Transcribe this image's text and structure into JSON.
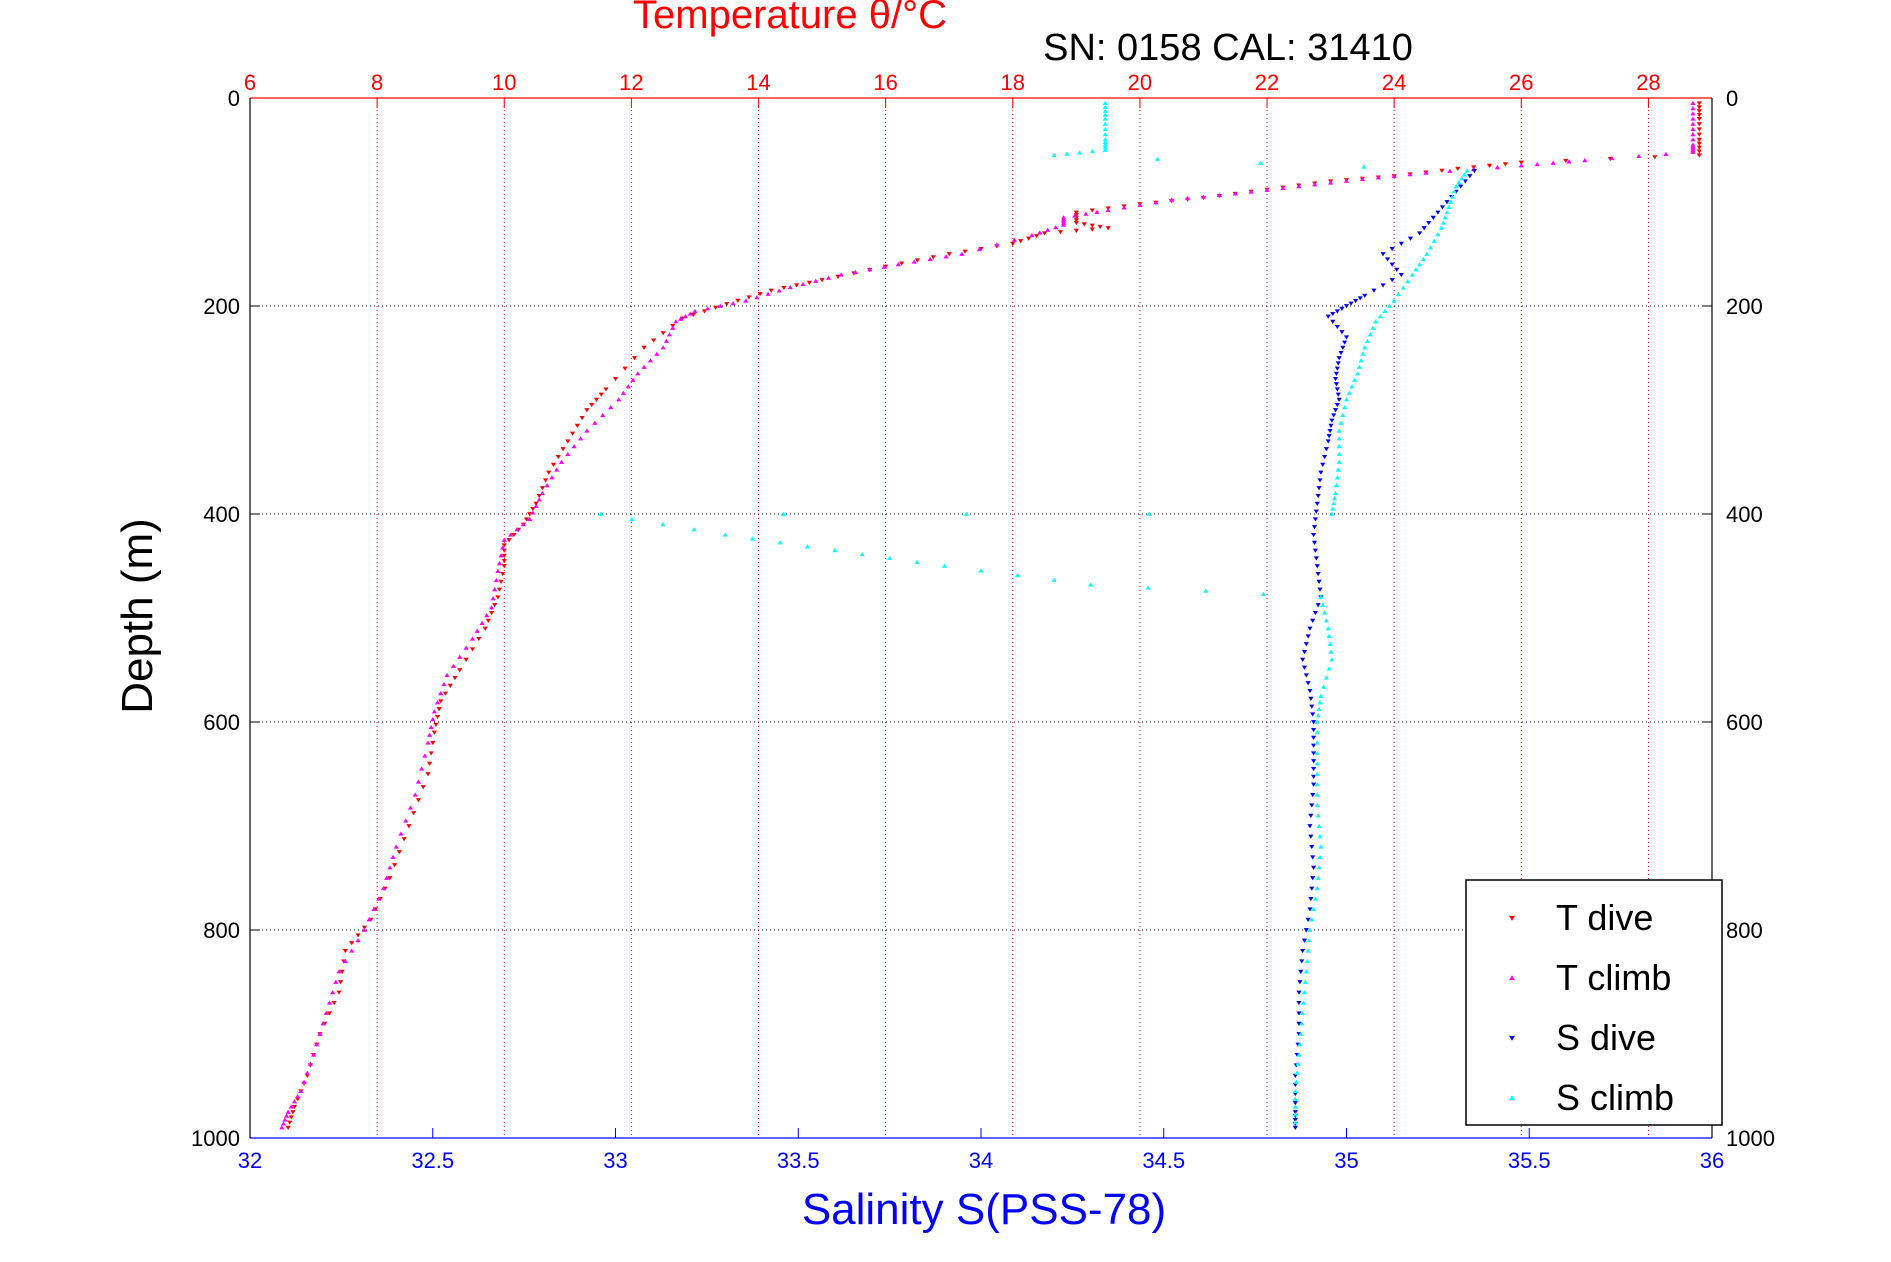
{
  "chart_data": {
    "type": "scatter",
    "title": "Temperature θ/°C",
    "subtitle": "SN: 0158  CAL: 31410",
    "xlabel": "Salinity S(PSS-78)",
    "ylabel": "Depth (m)",
    "x_bottom": {
      "label": "Salinity S(PSS-78)",
      "range": [
        32,
        36
      ],
      "ticks": [
        "32",
        "32.5",
        "33",
        "33.5",
        "34",
        "34.5",
        "35",
        "35.5",
        "36"
      ],
      "color": "#0000ff"
    },
    "x_top": {
      "label": "Temperature θ/°C",
      "range": [
        6,
        29
      ],
      "ticks": [
        "6",
        "8",
        "10",
        "12",
        "14",
        "16",
        "18",
        "20",
        "22",
        "24",
        "26",
        "28"
      ],
      "color": "#ff0000"
    },
    "y": {
      "label": "Depth (m)",
      "range": [
        0,
        1000
      ],
      "reversed": true,
      "ticks": [
        "0",
        "200",
        "400",
        "600",
        "800",
        "1000"
      ]
    },
    "grid": true,
    "legend_position": "bottom-right",
    "series": [
      {
        "name": "T dive",
        "axis": "top",
        "color": "#ff0000",
        "marker": "triangle-down",
        "points": [
          [
            28.8,
            5
          ],
          [
            28.8,
            20
          ],
          [
            28.8,
            40
          ],
          [
            28.8,
            55
          ],
          [
            26.0,
            62
          ],
          [
            25.0,
            68
          ],
          [
            24.0,
            75
          ],
          [
            23.0,
            80
          ],
          [
            22.0,
            88
          ],
          [
            21.0,
            96
          ],
          [
            20.0,
            102
          ],
          [
            19.0,
            110
          ],
          [
            19.0,
            120
          ],
          [
            19.5,
            125
          ],
          [
            18.5,
            130
          ],
          [
            18.0,
            140
          ],
          [
            17.0,
            150
          ],
          [
            16.0,
            162
          ],
          [
            15.0,
            175
          ],
          [
            14.2,
            185
          ],
          [
            13.5,
            198
          ],
          [
            12.8,
            212
          ],
          [
            12.2,
            240
          ],
          [
            11.6,
            280
          ],
          [
            11.3,
            300
          ],
          [
            11.0,
            330
          ],
          [
            10.7,
            360
          ],
          [
            10.5,
            390
          ],
          [
            10.3,
            410
          ],
          [
            10.0,
            430
          ],
          [
            10.0,
            450
          ],
          [
            9.9,
            480
          ],
          [
            9.7,
            510
          ],
          [
            9.3,
            550
          ],
          [
            9.0,
            580
          ],
          [
            8.9,
            610
          ],
          [
            8.8,
            650
          ],
          [
            8.5,
            700
          ],
          [
            8.2,
            750
          ],
          [
            7.9,
            790
          ],
          [
            7.5,
            820
          ],
          [
            7.4,
            860
          ],
          [
            7.1,
            900
          ],
          [
            6.9,
            940
          ],
          [
            6.7,
            970
          ],
          [
            6.6,
            990
          ]
        ]
      },
      {
        "name": "T climb",
        "axis": "top",
        "color": "#ff00ff",
        "marker": "triangle-up",
        "points": [
          [
            28.7,
            5
          ],
          [
            28.7,
            25
          ],
          [
            28.7,
            45
          ],
          [
            28.7,
            52
          ],
          [
            27.0,
            60
          ],
          [
            26.0,
            65
          ],
          [
            24.5,
            72
          ],
          [
            23.5,
            78
          ],
          [
            22.5,
            85
          ],
          [
            21.5,
            92
          ],
          [
            20.5,
            98
          ],
          [
            19.5,
            108
          ],
          [
            18.8,
            115
          ],
          [
            18.8,
            122
          ],
          [
            18.3,
            132
          ],
          [
            17.2,
            150
          ],
          [
            16.2,
            160
          ],
          [
            15.3,
            170
          ],
          [
            14.5,
            182
          ],
          [
            13.8,
            195
          ],
          [
            13.0,
            205
          ],
          [
            12.7,
            215
          ],
          [
            12.5,
            240
          ],
          [
            12.1,
            265
          ],
          [
            11.8,
            290
          ],
          [
            11.3,
            320
          ],
          [
            10.9,
            350
          ],
          [
            10.6,
            380
          ],
          [
            10.4,
            405
          ],
          [
            10.0,
            425
          ],
          [
            9.9,
            455
          ],
          [
            9.8,
            490
          ],
          [
            9.5,
            520
          ],
          [
            9.1,
            555
          ],
          [
            8.9,
            590
          ],
          [
            8.8,
            620
          ],
          [
            8.6,
            670
          ],
          [
            8.3,
            720
          ],
          [
            8.1,
            760
          ],
          [
            7.8,
            800
          ],
          [
            7.4,
            840
          ],
          [
            7.2,
            880
          ],
          [
            7.0,
            920
          ],
          [
            6.8,
            955
          ],
          [
            6.6,
            975
          ],
          [
            6.5,
            990
          ]
        ]
      },
      {
        "name": "S dive",
        "axis": "bottom",
        "color": "#0000ff",
        "marker": "triangle-down",
        "points": [
          [
            35.35,
            70
          ],
          [
            35.3,
            90
          ],
          [
            35.25,
            110
          ],
          [
            35.2,
            130
          ],
          [
            35.1,
            150
          ],
          [
            35.15,
            170
          ],
          [
            35.05,
            190
          ],
          [
            35.0,
            200
          ],
          [
            34.95,
            210
          ],
          [
            35.0,
            230
          ],
          [
            34.98,
            250
          ],
          [
            34.97,
            270
          ],
          [
            34.98,
            290
          ],
          [
            34.96,
            310
          ],
          [
            34.95,
            330
          ],
          [
            34.93,
            360
          ],
          [
            34.92,
            390
          ],
          [
            34.91,
            420
          ],
          [
            34.92,
            450
          ],
          [
            34.93,
            480
          ],
          [
            34.9,
            510
          ],
          [
            34.88,
            540
          ],
          [
            34.9,
            570
          ],
          [
            34.91,
            600
          ],
          [
            34.91,
            630
          ],
          [
            34.91,
            660
          ],
          [
            34.9,
            700
          ],
          [
            34.91,
            740
          ],
          [
            34.9,
            780
          ],
          [
            34.88,
            820
          ],
          [
            34.87,
            860
          ],
          [
            34.87,
            900
          ],
          [
            34.86,
            940
          ],
          [
            34.86,
            975
          ],
          [
            34.86,
            990
          ]
        ]
      },
      {
        "name": "S climb",
        "axis": "bottom",
        "color": "#00ffff",
        "marker": "triangle-up",
        "points": [
          [
            34.34,
            5
          ],
          [
            34.34,
            20
          ],
          [
            34.34,
            40
          ],
          [
            34.34,
            50
          ],
          [
            34.2,
            55
          ],
          [
            35.33,
            70
          ],
          [
            35.3,
            85
          ],
          [
            35.28,
            105
          ],
          [
            35.26,
            125
          ],
          [
            35.22,
            150
          ],
          [
            35.18,
            170
          ],
          [
            35.13,
            195
          ],
          [
            35.08,
            215
          ],
          [
            35.05,
            240
          ],
          [
            35.03,
            265
          ],
          [
            35.0,
            290
          ],
          [
            34.98,
            320
          ],
          [
            34.98,
            350
          ],
          [
            34.97,
            380
          ],
          [
            34.96,
            400
          ],
          [
            32.96,
            400
          ],
          [
            33.3,
            420
          ],
          [
            33.6,
            435
          ],
          [
            33.9,
            450
          ],
          [
            34.3,
            468
          ],
          [
            34.93,
            480
          ],
          [
            34.95,
            510
          ],
          [
            34.96,
            540
          ],
          [
            34.93,
            575
          ],
          [
            34.92,
            600
          ],
          [
            34.92,
            640
          ],
          [
            34.92,
            680
          ],
          [
            34.93,
            720
          ],
          [
            34.92,
            760
          ],
          [
            34.9,
            800
          ],
          [
            34.89,
            840
          ],
          [
            34.88,
            880
          ],
          [
            34.87,
            920
          ],
          [
            34.86,
            955
          ],
          [
            34.86,
            985
          ]
        ]
      }
    ]
  }
}
